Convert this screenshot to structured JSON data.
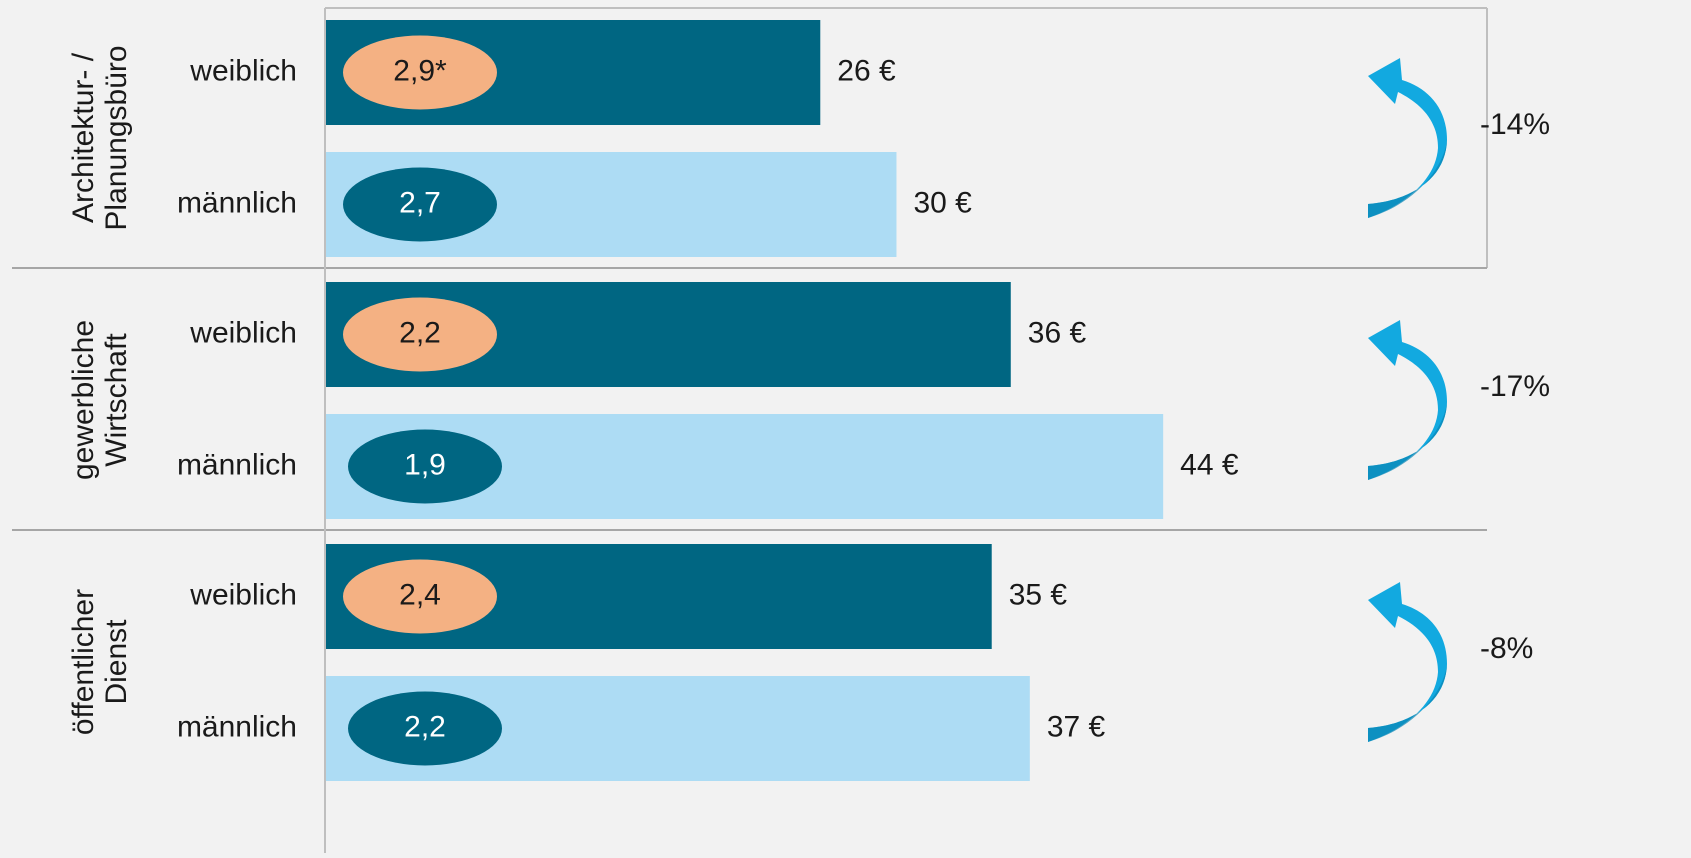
{
  "chart_data": {
    "type": "bar",
    "orientation": "horizontal",
    "categories": [
      [
        "Architektur- /",
        "Planungsbüro"
      ],
      [
        "gewerbliche",
        "Wirtschaft"
      ],
      [
        "öffentlicher",
        "Dienst"
      ]
    ],
    "series": [
      {
        "name": "weiblich",
        "color": "#006682",
        "values": [
          26,
          36,
          35
        ],
        "value_labels": [
          "26 €",
          "36 €",
          "35 €"
        ],
        "badges": [
          2.9,
          2.2,
          2.4
        ],
        "badge_labels": [
          "2,9*",
          "2,2",
          "2,4"
        ],
        "badge_color": "#f4b183",
        "badge_text_color": "#1a1a1a"
      },
      {
        "name": "männlich",
        "color": "#addcf4",
        "values": [
          30,
          44,
          37
        ],
        "value_labels": [
          "30 €",
          "44 €",
          "37 €"
        ],
        "badges": [
          2.7,
          1.9,
          2.2
        ],
        "badge_labels": [
          "2,7",
          "1,9",
          "2,2"
        ],
        "badge_color": "#006682",
        "badge_text_color": "#ffffff"
      }
    ],
    "differences": [
      -14,
      -17,
      -8
    ],
    "difference_labels": [
      "-14%",
      "-17%",
      "-8%"
    ],
    "arrow_color": "#12a9e0",
    "xlim": [
      0,
      61
    ]
  }
}
